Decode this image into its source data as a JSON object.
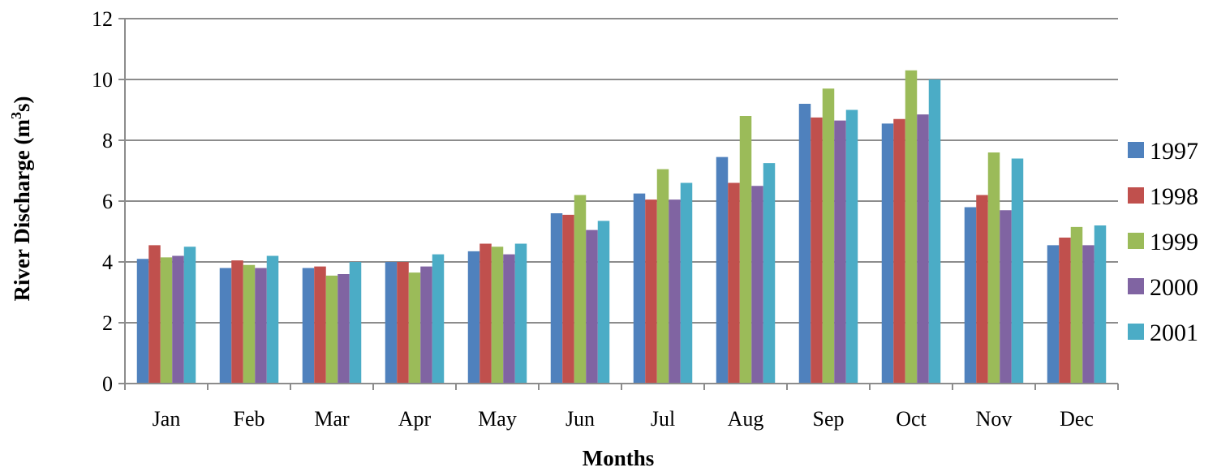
{
  "chart_data": {
    "type": "bar",
    "title": "",
    "xlabel": "Months",
    "ylabel_main": "River Discharge (m",
    "ylabel_sup": "3",
    "ylabel_end": "s)",
    "ylim": [
      0,
      12
    ],
    "yticks": [
      "0",
      "2",
      "4",
      "6",
      "8",
      "10",
      "12"
    ],
    "grid": true,
    "legend_position": "right",
    "categories": [
      "Jan",
      "Feb",
      "Mar",
      "Apr",
      "May",
      "Jun",
      "Jul",
      "Aug",
      "Sep",
      "Oct",
      "Nov",
      "Dec"
    ],
    "series": [
      {
        "name": "1997",
        "color": "#4F81BD",
        "values": [
          4.1,
          3.8,
          3.8,
          4.0,
          4.35,
          5.6,
          6.25,
          7.45,
          9.2,
          8.55,
          5.8,
          4.55
        ]
      },
      {
        "name": "1998",
        "color": "#C0504D",
        "values": [
          4.55,
          4.05,
          3.85,
          4.0,
          4.6,
          5.55,
          6.05,
          6.6,
          8.75,
          8.7,
          6.2,
          4.8
        ]
      },
      {
        "name": "1999",
        "color": "#9BBB59",
        "values": [
          4.15,
          3.9,
          3.55,
          3.65,
          4.5,
          6.2,
          7.05,
          8.8,
          9.7,
          10.3,
          7.6,
          5.15
        ]
      },
      {
        "name": "2000",
        "color": "#8064A2",
        "values": [
          4.2,
          3.8,
          3.6,
          3.85,
          4.25,
          5.05,
          6.05,
          6.5,
          8.65,
          8.85,
          5.7,
          4.55
        ]
      },
      {
        "name": "2001",
        "color": "#4BACC6",
        "values": [
          4.5,
          4.2,
          4.0,
          4.25,
          4.6,
          5.35,
          6.6,
          7.25,
          9.0,
          10.0,
          7.4,
          5.2
        ]
      }
    ]
  }
}
